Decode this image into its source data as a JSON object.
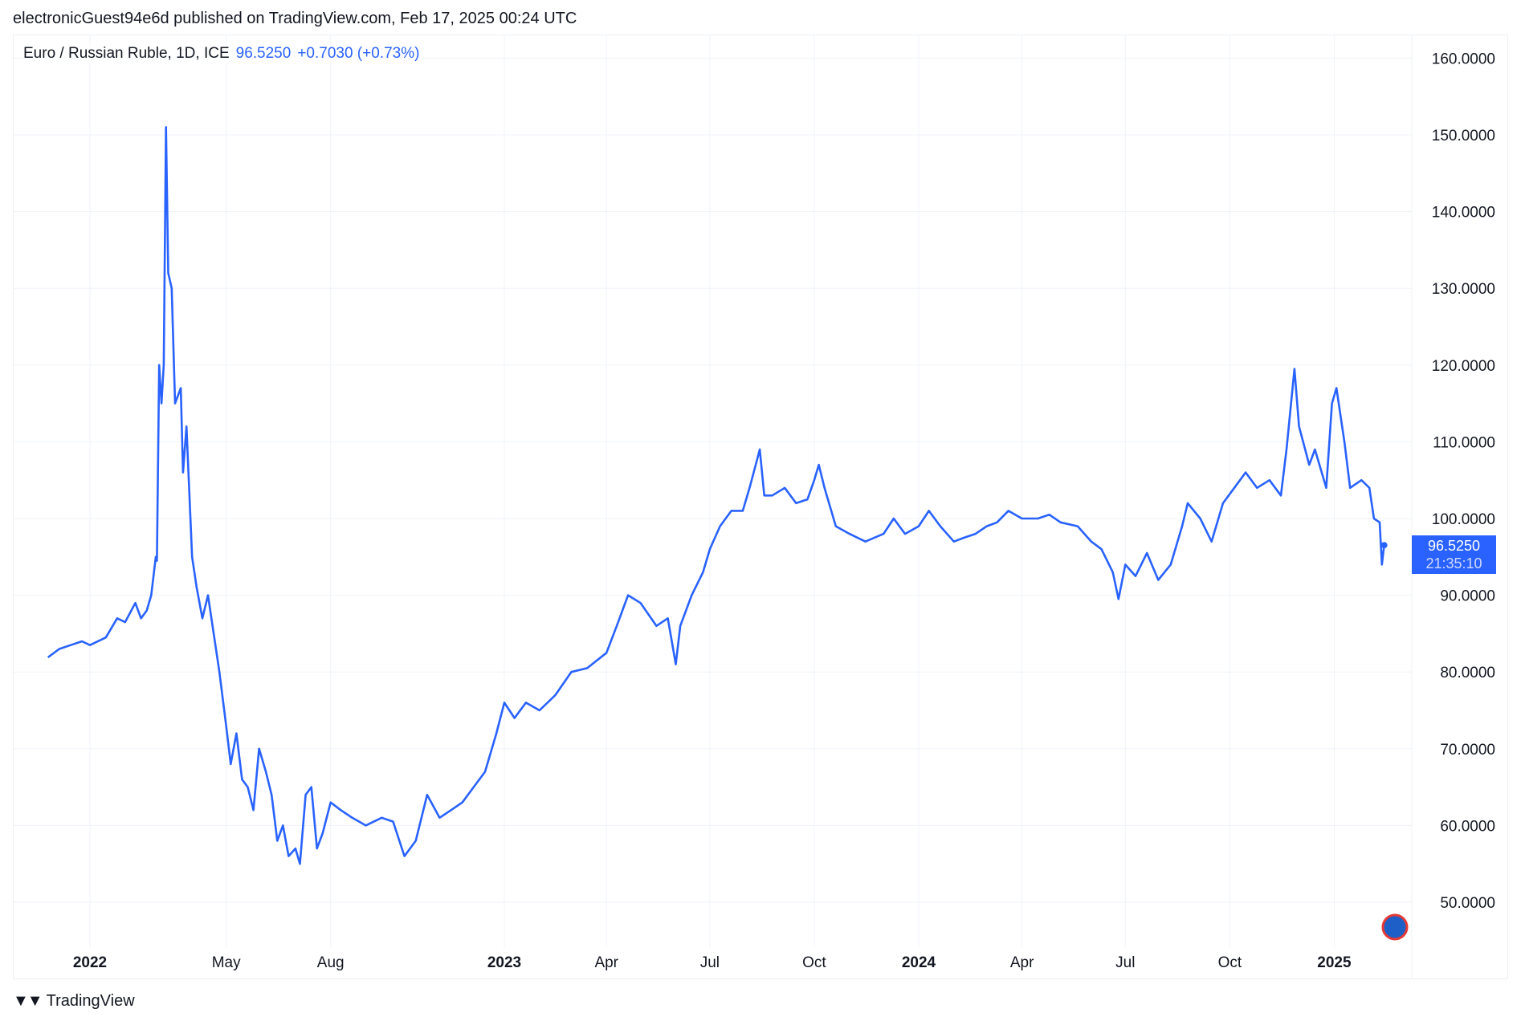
{
  "header": {
    "published": "electronicGuest94e6d published on TradingView.com, Feb 17, 2025 00:24 UTC"
  },
  "legend": {
    "symbol": "Euro / Russian Ruble, 1D, ICE",
    "price": "96.5250",
    "change": "+0.7030 (+0.73%)"
  },
  "price_tag": {
    "price": "96.5250",
    "countdown": "21:35:10"
  },
  "footer": {
    "brand": "TradingView",
    "logo_mark": "17"
  },
  "colors": {
    "line": "#2962ff",
    "grid": "#f0f3fa"
  },
  "chart_data": {
    "type": "line",
    "title": "Euro / Russian Ruble, 1D, ICE",
    "xlabel": "",
    "ylabel": "",
    "ylim": [
      45,
      165
    ],
    "grid": true,
    "yticks": [
      "160.0000",
      "150.0000",
      "140.0000",
      "130.0000",
      "120.0000",
      "110.0000",
      "100.0000",
      "90.0000",
      "80.0000",
      "70.0000",
      "60.0000",
      "50.0000"
    ],
    "xticks": [
      {
        "label": "2022",
        "date": "2022-01-01",
        "bold": true
      },
      {
        "label": "May",
        "date": "2022-05-01"
      },
      {
        "label": "Aug",
        "date": "2022-08-01"
      },
      {
        "label": "2023",
        "date": "2023-01-01",
        "bold": true
      },
      {
        "label": "Apr",
        "date": "2023-04-01"
      },
      {
        "label": "Jul",
        "date": "2023-07-01"
      },
      {
        "label": "Oct",
        "date": "2023-10-01"
      },
      {
        "label": "2024",
        "date": "2024-01-01",
        "bold": true
      },
      {
        "label": "Apr",
        "date": "2024-04-01"
      },
      {
        "label": "Jul",
        "date": "2024-07-01"
      },
      {
        "label": "Oct",
        "date": "2024-10-01"
      },
      {
        "label": "2025",
        "date": "2025-01-01",
        "bold": true
      }
    ],
    "series": [
      {
        "name": "EURRUB",
        "points": [
          [
            "2021-11-25",
            81.9
          ],
          [
            "2021-12-05",
            83
          ],
          [
            "2021-12-15",
            83.5
          ],
          [
            "2021-12-25",
            84
          ],
          [
            "2022-01-01",
            83.5
          ],
          [
            "2022-01-15",
            84.5
          ],
          [
            "2022-01-25",
            87
          ],
          [
            "2022-02-01",
            86.5
          ],
          [
            "2022-02-10",
            89
          ],
          [
            "2022-02-15",
            87
          ],
          [
            "2022-02-20",
            88
          ],
          [
            "2022-02-24",
            90
          ],
          [
            "2022-02-28",
            95
          ],
          [
            "2022-03-01",
            94.5
          ],
          [
            "2022-03-03",
            120
          ],
          [
            "2022-03-05",
            115
          ],
          [
            "2022-03-07",
            120
          ],
          [
            "2022-03-09",
            151
          ],
          [
            "2022-03-11",
            132
          ],
          [
            "2022-03-14",
            130
          ],
          [
            "2022-03-17",
            115
          ],
          [
            "2022-03-22",
            117
          ],
          [
            "2022-03-24",
            106
          ],
          [
            "2022-03-27",
            112
          ],
          [
            "2022-04-01",
            95
          ],
          [
            "2022-04-05",
            91
          ],
          [
            "2022-04-10",
            87
          ],
          [
            "2022-04-15",
            90
          ],
          [
            "2022-04-20",
            85
          ],
          [
            "2022-04-25",
            80
          ],
          [
            "2022-05-01",
            73
          ],
          [
            "2022-05-05",
            68
          ],
          [
            "2022-05-10",
            72
          ],
          [
            "2022-05-15",
            66
          ],
          [
            "2022-05-20",
            65
          ],
          [
            "2022-05-25",
            62
          ],
          [
            "2022-05-30",
            70
          ],
          [
            "2022-06-05",
            67
          ],
          [
            "2022-06-10",
            64
          ],
          [
            "2022-06-15",
            58
          ],
          [
            "2022-06-20",
            60
          ],
          [
            "2022-06-25",
            56
          ],
          [
            "2022-07-01",
            57
          ],
          [
            "2022-07-05",
            55
          ],
          [
            "2022-07-10",
            64
          ],
          [
            "2022-07-15",
            65
          ],
          [
            "2022-07-20",
            57
          ],
          [
            "2022-07-25",
            59
          ],
          [
            "2022-08-01",
            63
          ],
          [
            "2022-08-10",
            62
          ],
          [
            "2022-08-20",
            61
          ],
          [
            "2022-09-01",
            60
          ],
          [
            "2022-09-15",
            61
          ],
          [
            "2022-09-25",
            60.5
          ],
          [
            "2022-10-05",
            56
          ],
          [
            "2022-10-15",
            58
          ],
          [
            "2022-10-25",
            64
          ],
          [
            "2022-11-05",
            61
          ],
          [
            "2022-11-15",
            62
          ],
          [
            "2022-11-25",
            63
          ],
          [
            "2022-12-05",
            65
          ],
          [
            "2022-12-15",
            67
          ],
          [
            "2022-12-25",
            72
          ],
          [
            "2023-01-01",
            76
          ],
          [
            "2023-01-10",
            74
          ],
          [
            "2023-01-20",
            76
          ],
          [
            "2023-02-01",
            75
          ],
          [
            "2023-02-15",
            77
          ],
          [
            "2023-03-01",
            80
          ],
          [
            "2023-03-15",
            80.5
          ],
          [
            "2023-04-01",
            82.5
          ],
          [
            "2023-04-10",
            86
          ],
          [
            "2023-04-20",
            90
          ],
          [
            "2023-05-01",
            89
          ],
          [
            "2023-05-15",
            86
          ],
          [
            "2023-05-25",
            87
          ],
          [
            "2023-06-01",
            81
          ],
          [
            "2023-06-05",
            86
          ],
          [
            "2023-06-15",
            90
          ],
          [
            "2023-06-25",
            93
          ],
          [
            "2023-07-01",
            96
          ],
          [
            "2023-07-10",
            99
          ],
          [
            "2023-07-20",
            101
          ],
          [
            "2023-07-30",
            101
          ],
          [
            "2023-08-05",
            104
          ],
          [
            "2023-08-14",
            109
          ],
          [
            "2023-08-18",
            103
          ],
          [
            "2023-08-25",
            103
          ],
          [
            "2023-09-05",
            104
          ],
          [
            "2023-09-15",
            102
          ],
          [
            "2023-09-25",
            102.5
          ],
          [
            "2023-10-01",
            105
          ],
          [
            "2023-10-05",
            107
          ],
          [
            "2023-10-10",
            104
          ],
          [
            "2023-10-20",
            99
          ],
          [
            "2023-11-01",
            98
          ],
          [
            "2023-11-15",
            97
          ],
          [
            "2023-12-01",
            98
          ],
          [
            "2023-12-10",
            100
          ],
          [
            "2023-12-20",
            98
          ],
          [
            "2024-01-01",
            99
          ],
          [
            "2024-01-10",
            101
          ],
          [
            "2024-01-20",
            99
          ],
          [
            "2024-02-01",
            97
          ],
          [
            "2024-02-10",
            97.5
          ],
          [
            "2024-02-20",
            98
          ],
          [
            "2024-03-01",
            99
          ],
          [
            "2024-03-10",
            99.5
          ],
          [
            "2024-03-20",
            101
          ],
          [
            "2024-04-01",
            100
          ],
          [
            "2024-04-15",
            100
          ],
          [
            "2024-04-25",
            100.5
          ],
          [
            "2024-05-05",
            99.5
          ],
          [
            "2024-05-20",
            99
          ],
          [
            "2024-06-01",
            97
          ],
          [
            "2024-06-10",
            96
          ],
          [
            "2024-06-20",
            93
          ],
          [
            "2024-06-25",
            89.5
          ],
          [
            "2024-07-01",
            94
          ],
          [
            "2024-07-10",
            92.5
          ],
          [
            "2024-07-20",
            95.5
          ],
          [
            "2024-07-30",
            92
          ],
          [
            "2024-08-10",
            94
          ],
          [
            "2024-08-20",
            99
          ],
          [
            "2024-08-25",
            102
          ],
          [
            "2024-09-05",
            100
          ],
          [
            "2024-09-15",
            97
          ],
          [
            "2024-09-25",
            102
          ],
          [
            "2024-10-05",
            104
          ],
          [
            "2024-10-15",
            106
          ],
          [
            "2024-10-25",
            104
          ],
          [
            "2024-11-05",
            105
          ],
          [
            "2024-11-15",
            103
          ],
          [
            "2024-11-20",
            109
          ],
          [
            "2024-11-27",
            119.5
          ],
          [
            "2024-12-01",
            112
          ],
          [
            "2024-12-10",
            107
          ],
          [
            "2024-12-15",
            109
          ],
          [
            "2024-12-25",
            104
          ],
          [
            "2024-12-30",
            115
          ],
          [
            "2025-01-03",
            117
          ],
          [
            "2025-01-10",
            110
          ],
          [
            "2025-01-15",
            104
          ],
          [
            "2025-01-25",
            105
          ],
          [
            "2025-02-01",
            104
          ],
          [
            "2025-02-05",
            100
          ],
          [
            "2025-02-10",
            99.5
          ],
          [
            "2025-02-12",
            94
          ],
          [
            "2025-02-14",
            96.525
          ]
        ]
      }
    ]
  }
}
